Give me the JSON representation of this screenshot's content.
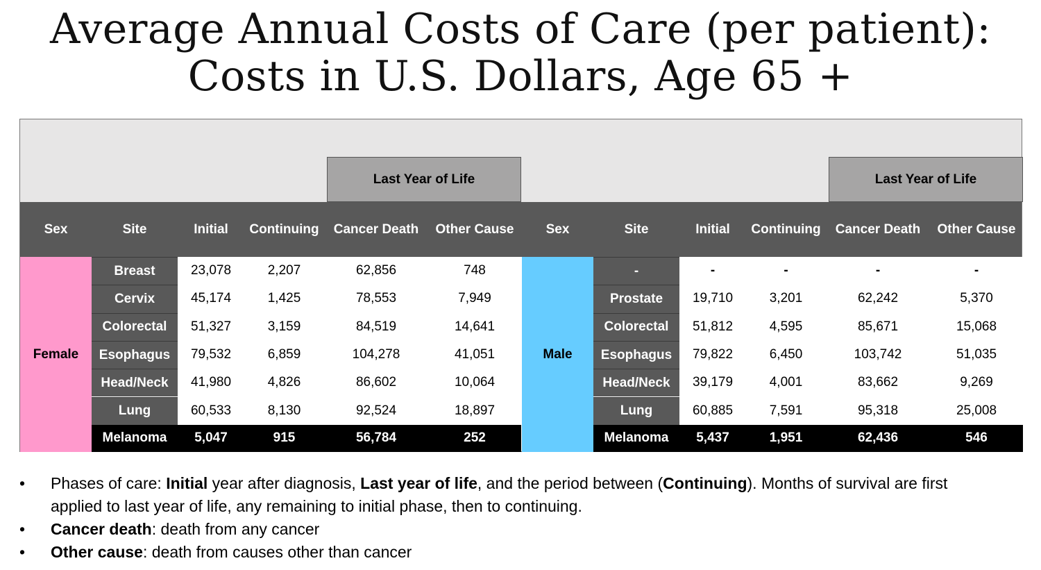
{
  "title": {
    "line1": "Average Annual Costs of Care (per patient):",
    "line2": "Costs in U.S. Dollars, Age 65 +"
  },
  "table": {
    "group_header": "Last Year of Life",
    "columns": [
      "Sex",
      "Site",
      "Initial",
      "Continuing",
      "Cancer Death",
      "Other Cause"
    ],
    "colors": {
      "female": "#ff99cc",
      "male": "#66ccff",
      "header": "#595959",
      "band": "#e7e6e6",
      "group": "#a6a5a5"
    },
    "female": {
      "sex": "Female",
      "rows": [
        {
          "site": "Breast",
          "initial": "23,078",
          "continuing": "2,207",
          "cancer_death": "62,856",
          "other_cause": "748"
        },
        {
          "site": "Cervix",
          "initial": "45,174",
          "continuing": "1,425",
          "cancer_death": "78,553",
          "other_cause": "7,949"
        },
        {
          "site": "Colorectal",
          "initial": "51,327",
          "continuing": "3,159",
          "cancer_death": "84,519",
          "other_cause": "14,641"
        },
        {
          "site": "Esophagus",
          "initial": "79,532",
          "continuing": "6,859",
          "cancer_death": "104,278",
          "other_cause": "41,051"
        },
        {
          "site": "Head/Neck",
          "initial": "41,980",
          "continuing": "4,826",
          "cancer_death": "86,602",
          "other_cause": "10,064"
        },
        {
          "site": "Lung",
          "initial": "60,533",
          "continuing": "8,130",
          "cancer_death": "92,524",
          "other_cause": "18,897"
        },
        {
          "site": "Melanoma",
          "initial": "5,047",
          "continuing": "915",
          "cancer_death": "56,784",
          "other_cause": "252"
        }
      ]
    },
    "male": {
      "sex": "Male",
      "rows": [
        {
          "site": "-",
          "initial": "-",
          "continuing": "-",
          "cancer_death": "-",
          "other_cause": "-"
        },
        {
          "site": "Prostate",
          "initial": "19,710",
          "continuing": "3,201",
          "cancer_death": "62,242",
          "other_cause": "5,370"
        },
        {
          "site": "Colorectal",
          "initial": "51,812",
          "continuing": "4,595",
          "cancer_death": "85,671",
          "other_cause": "15,068"
        },
        {
          "site": "Esophagus",
          "initial": "79,822",
          "continuing": "6,450",
          "cancer_death": "103,742",
          "other_cause": "51,035"
        },
        {
          "site": "Head/Neck",
          "initial": "39,179",
          "continuing": "4,001",
          "cancer_death": "83,662",
          "other_cause": "9,269"
        },
        {
          "site": "Lung",
          "initial": "60,885",
          "continuing": "7,591",
          "cancer_death": "95,318",
          "other_cause": "25,008"
        },
        {
          "site": "Melanoma",
          "initial": "5,437",
          "continuing": "1,951",
          "cancer_death": "62,436",
          "other_cause": "546"
        }
      ]
    }
  },
  "notes": {
    "bullet": "•",
    "n1": {
      "a": "Phases of care:  ",
      "b": "Initial",
      "c": " year after diagnosis, ",
      "d": "Last year of life",
      "e": ", and the period between (",
      "f": "Continuing",
      "g": "). Months of survival are first",
      "h": "applied to last year of life, any remaining to initial phase, then to continuing."
    },
    "n2": {
      "a": "Cancer death",
      "b": ": death from any cancer"
    },
    "n3": {
      "a": "Other cause",
      "b": ": death from causes other than cancer"
    }
  }
}
